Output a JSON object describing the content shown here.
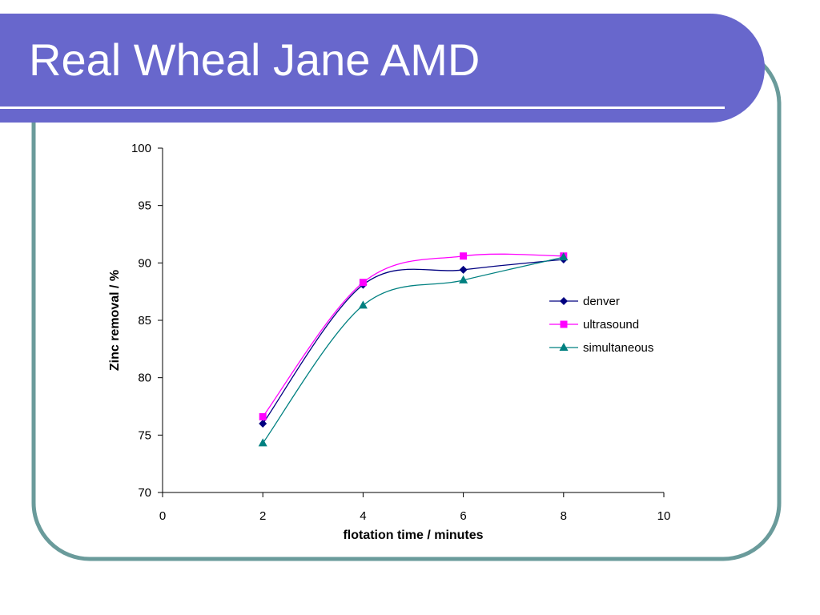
{
  "slide": {
    "title": "Real Wheal Jane AMD",
    "colors": {
      "banner": "#6867cc",
      "frame": "#6a9b9b",
      "title_text": "#ffffff"
    }
  },
  "chart_data": {
    "type": "line",
    "smoothed": true,
    "x": [
      2,
      4,
      6,
      8
    ],
    "series": [
      {
        "name": "denver",
        "values": [
          76.0,
          88.1,
          89.4,
          90.3
        ],
        "color": "#000080",
        "marker": "diamond"
      },
      {
        "name": "ultrasound",
        "values": [
          76.6,
          88.3,
          90.6,
          90.6
        ],
        "color": "#ff00ff",
        "marker": "square"
      },
      {
        "name": "simultaneous",
        "values": [
          74.3,
          86.3,
          88.5,
          90.5
        ],
        "color": "#008080",
        "marker": "triangle"
      }
    ],
    "xlabel": "flotation time / minutes",
    "ylabel": "Zinc removal / %",
    "xlim": [
      0,
      10
    ],
    "ylim": [
      70,
      100
    ],
    "xticks": [
      0,
      2,
      4,
      6,
      8,
      10
    ],
    "yticks": [
      70,
      75,
      80,
      85,
      90,
      95,
      100
    ],
    "grid": false,
    "legend_position": "right"
  }
}
